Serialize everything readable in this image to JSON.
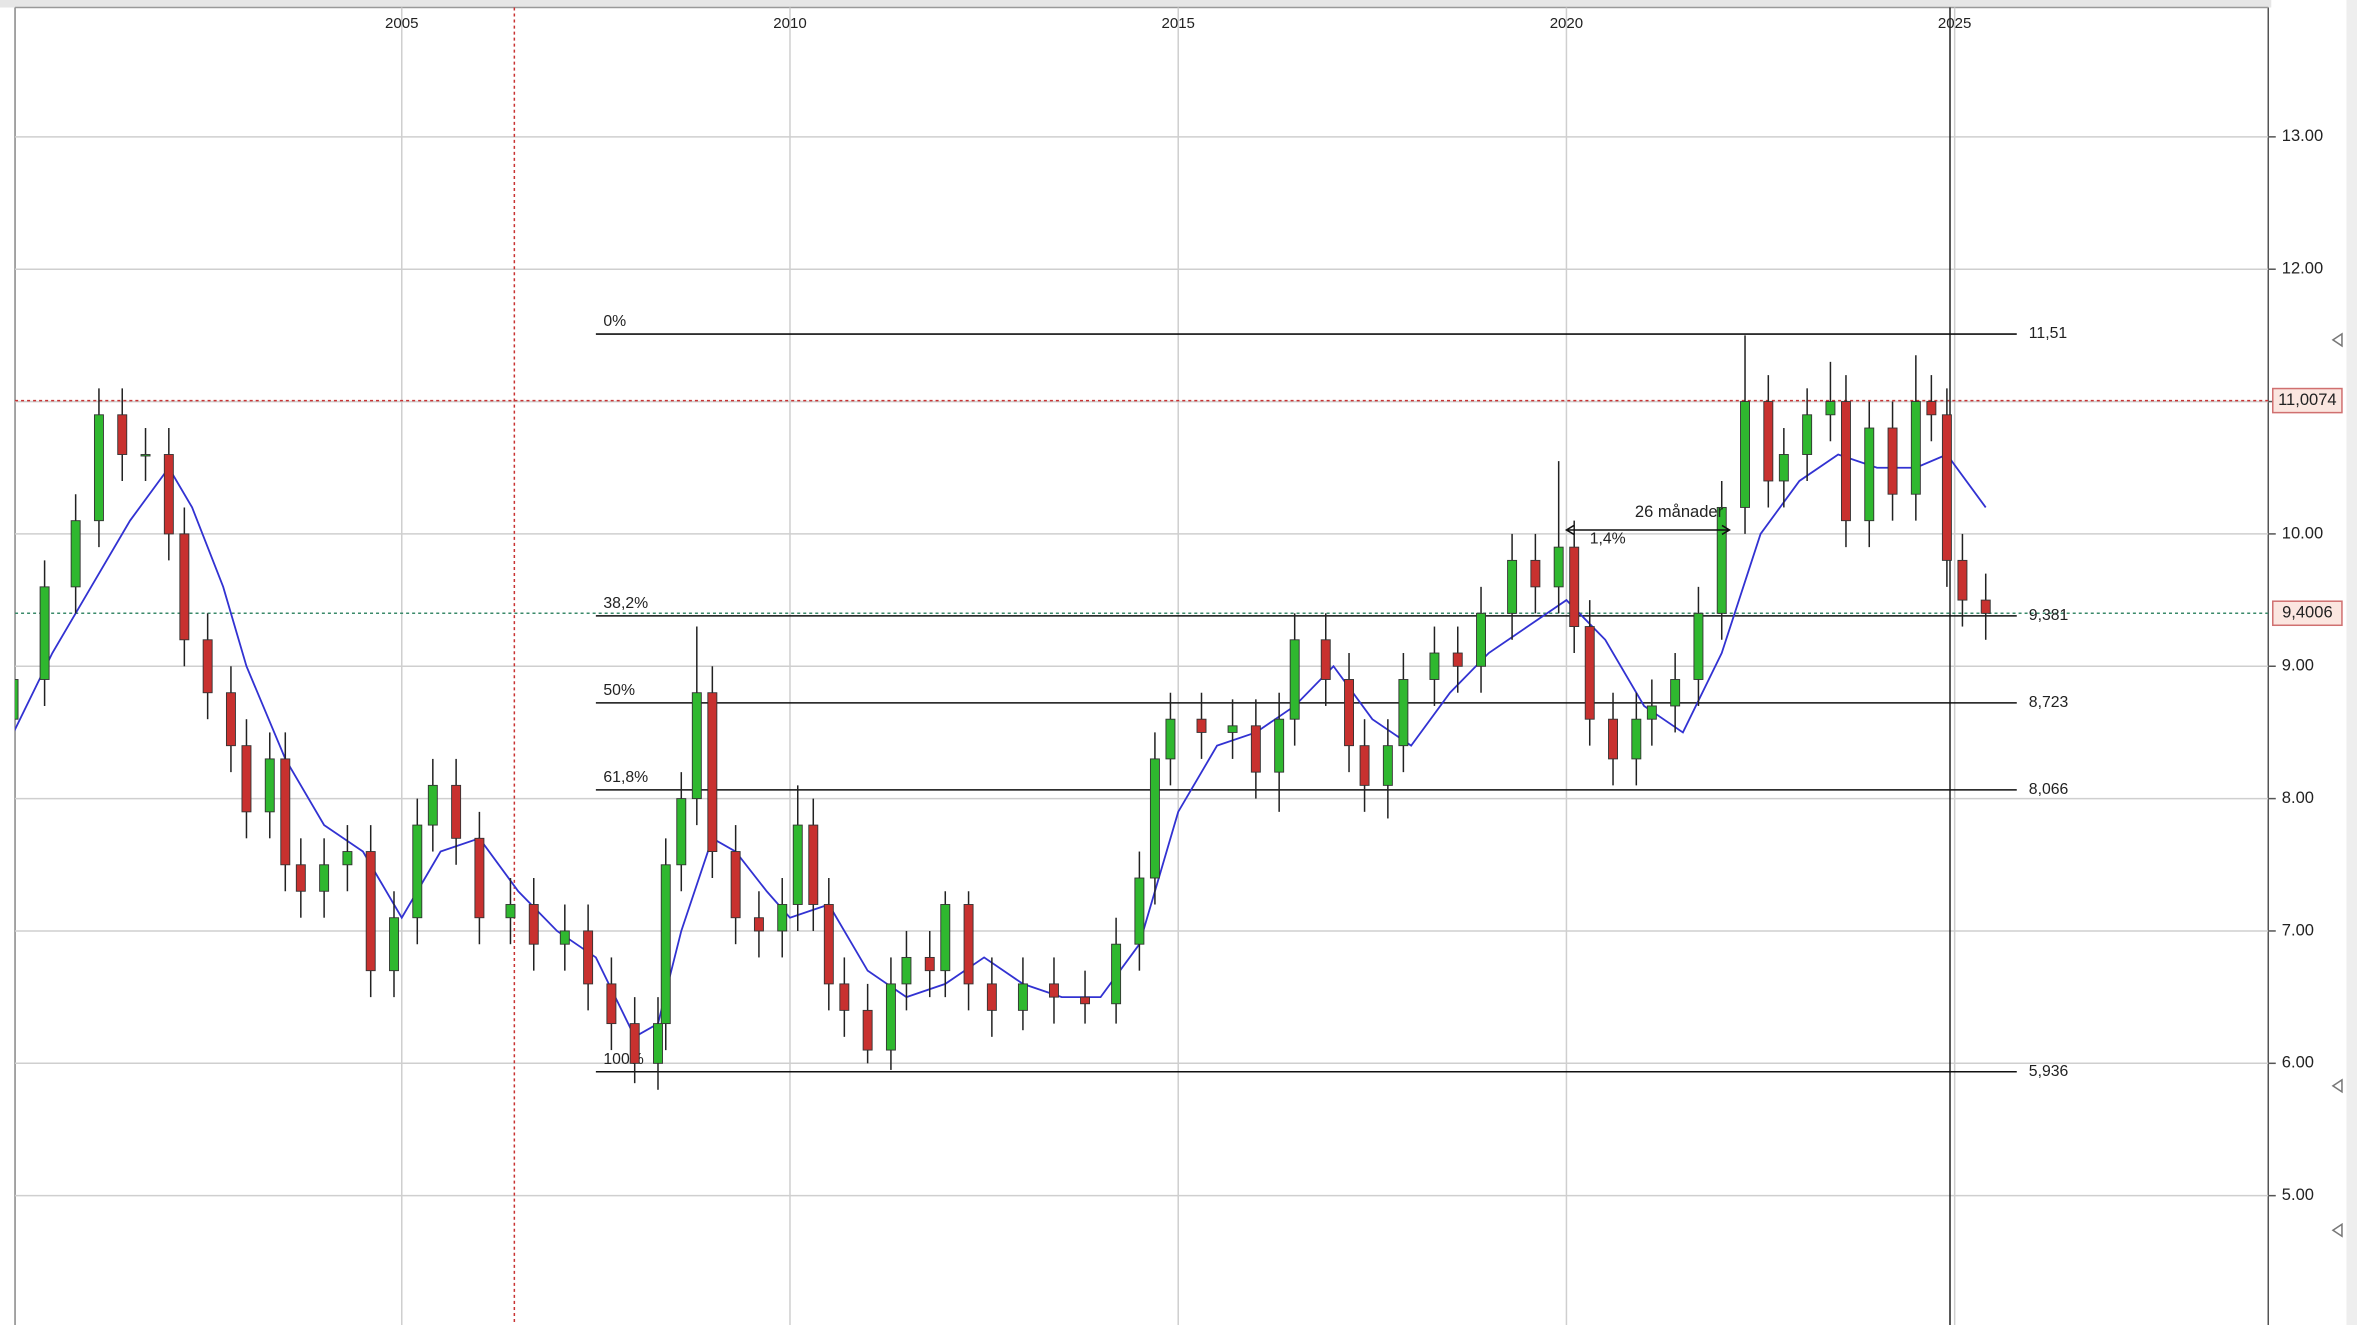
{
  "chart_data": {
    "type": "candlestick",
    "xlim": [
      2000,
      2029
    ],
    "ylim": [
      4,
      14
    ],
    "xticks": [
      2005,
      2010,
      2015,
      2020,
      2025
    ],
    "yticks": [
      {
        "value": 5,
        "label": "5.00"
      },
      {
        "value": 6,
        "label": "6.00"
      },
      {
        "value": 7,
        "label": "7.00"
      },
      {
        "value": 8,
        "label": "8.00"
      },
      {
        "value": 9,
        "label": "9.00"
      },
      {
        "value": 10,
        "label": "10.00"
      },
      {
        "value": 11,
        "label": "11.00"
      },
      {
        "value": 12,
        "label": "12.00"
      },
      {
        "value": 13,
        "label": "13.00"
      }
    ],
    "grid": true,
    "up_color": "#2fb82f",
    "down_color": "#c8312f",
    "x": [
      2000.0,
      2000.4,
      2000.8,
      2001.1,
      2001.4,
      2001.7,
      2002.0,
      2002.2,
      2002.5,
      2002.8,
      2003.0,
      2003.3,
      2003.5,
      2003.7,
      2004.0,
      2004.3,
      2004.6,
      2004.9,
      2005.2,
      2005.4,
      2005.7,
      2006.0,
      2006.4,
      2006.7,
      2007.1,
      2007.4,
      2007.7,
      2008.0,
      2008.3,
      2008.4,
      2008.6,
      2008.8,
      2009.0,
      2009.3,
      2009.6,
      2009.9,
      2010.1,
      2010.3,
      2010.5,
      2010.7,
      2011.0,
      2011.3,
      2011.5,
      2011.8,
      2012.0,
      2012.3,
      2012.6,
      2013.0,
      2013.4,
      2013.8,
      2014.2,
      2014.5,
      2014.7,
      2014.9,
      2015.3,
      2015.7,
      2016.0,
      2016.3,
      2016.5,
      2016.9,
      2017.2,
      2017.4,
      2017.7,
      2017.9,
      2018.3,
      2018.6,
      2018.9,
      2019.3,
      2019.6,
      2019.9,
      2020.1,
      2020.3,
      2020.6,
      2020.9,
      2021.1,
      2021.4,
      2021.7,
      2022.0,
      2022.3,
      2022.6,
      2022.8,
      2023.1,
      2023.4,
      2023.6,
      2023.9,
      2024.2,
      2024.5,
      2024.7,
      2024.9,
      2025.1,
      2025.4
    ],
    "open": [
      8.6,
      8.9,
      9.6,
      10.1,
      10.9,
      10.6,
      10.6,
      10.0,
      9.2,
      8.8,
      8.4,
      7.9,
      8.3,
      7.5,
      7.3,
      7.5,
      7.6,
      6.7,
      7.1,
      7.8,
      8.1,
      7.7,
      7.1,
      7.2,
      6.9,
      7.0,
      6.6,
      6.3,
      6.0,
      6.3,
      7.5,
      8.0,
      8.8,
      7.6,
      7.1,
      7.0,
      7.2,
      7.8,
      7.2,
      6.6,
      6.4,
      6.1,
      6.6,
      6.8,
      6.7,
      7.2,
      6.6,
      6.4,
      6.6,
      6.5,
      6.45,
      6.9,
      7.4,
      8.3,
      8.6,
      8.5,
      8.55,
      8.2,
      8.6,
      9.2,
      8.9,
      8.4,
      8.1,
      8.4,
      8.9,
      9.1,
      9.0,
      9.4,
      9.8,
      9.6,
      9.9,
      9.3,
      8.6,
      8.3,
      8.6,
      8.7,
      8.9,
      9.4,
      10.2,
      11.0,
      10.4,
      10.6,
      10.9,
      11.0,
      10.1,
      10.8,
      10.3,
      11.0,
      10.9,
      9.8,
      9.5
    ],
    "high": [
      9.1,
      9.8,
      10.3,
      11.1,
      11.1,
      10.8,
      10.8,
      10.2,
      9.4,
      9.0,
      8.6,
      8.5,
      8.5,
      7.7,
      7.7,
      7.8,
      7.8,
      7.3,
      8.0,
      8.3,
      8.3,
      7.9,
      7.4,
      7.4,
      7.2,
      7.2,
      6.8,
      6.5,
      6.5,
      7.7,
      8.2,
      9.3,
      9.0,
      7.8,
      7.3,
      7.4,
      8.1,
      8.0,
      7.4,
      6.8,
      6.6,
      6.8,
      7.0,
      7.0,
      7.3,
      7.3,
      6.8,
      6.8,
      6.8,
      6.7,
      7.1,
      7.6,
      8.5,
      8.8,
      8.8,
      8.75,
      8.75,
      8.8,
      9.4,
      9.4,
      9.1,
      8.6,
      8.6,
      9.1,
      9.3,
      9.3,
      9.6,
      10.0,
      10.0,
      10.55,
      10.1,
      9.5,
      8.8,
      8.8,
      8.9,
      9.1,
      9.6,
      10.4,
      11.5,
      11.2,
      10.8,
      11.1,
      11.3,
      11.2,
      11.0,
      11.0,
      11.35,
      11.2,
      11.1,
      10.0,
      9.7
    ],
    "low": [
      8.4,
      8.7,
      9.4,
      9.9,
      10.4,
      10.4,
      9.8,
      9.0,
      8.6,
      8.2,
      7.7,
      7.7,
      7.3,
      7.1,
      7.1,
      7.3,
      6.5,
      6.5,
      6.9,
      7.6,
      7.5,
      6.9,
      6.9,
      6.7,
      6.7,
      6.4,
      6.1,
      5.85,
      5.8,
      6.1,
      7.3,
      7.8,
      7.4,
      6.9,
      6.8,
      6.8,
      7.0,
      7.0,
      6.4,
      6.2,
      6.0,
      5.95,
      6.4,
      6.5,
      6.5,
      6.4,
      6.2,
      6.25,
      6.3,
      6.3,
      6.3,
      6.7,
      7.2,
      8.1,
      8.3,
      8.3,
      8.0,
      7.9,
      8.4,
      8.7,
      8.2,
      7.9,
      7.85,
      8.2,
      8.7,
      8.8,
      8.8,
      9.2,
      9.4,
      9.4,
      9.1,
      8.4,
      8.1,
      8.1,
      8.4,
      8.5,
      8.7,
      9.2,
      10.0,
      10.2,
      10.2,
      10.4,
      10.7,
      9.9,
      9.9,
      10.1,
      10.1,
      10.7,
      9.6,
      9.3,
      9.2
    ],
    "close": [
      8.9,
      9.6,
      10.1,
      10.9,
      10.6,
      10.6,
      10.0,
      9.2,
      8.8,
      8.4,
      7.9,
      8.3,
      7.5,
      7.3,
      7.5,
      7.6,
      6.7,
      7.1,
      7.8,
      8.1,
      7.7,
      7.1,
      7.2,
      6.9,
      7.0,
      6.6,
      6.3,
      6.0,
      6.3,
      7.5,
      8.0,
      8.8,
      7.6,
      7.1,
      7.0,
      7.2,
      7.8,
      7.2,
      6.6,
      6.4,
      6.1,
      6.6,
      6.8,
      6.7,
      7.2,
      6.6,
      6.4,
      6.6,
      6.5,
      6.45,
      6.9,
      7.4,
      8.3,
      8.6,
      8.5,
      8.55,
      8.2,
      8.6,
      9.2,
      8.9,
      8.4,
      8.1,
      8.4,
      8.9,
      9.1,
      9.0,
      9.4,
      9.8,
      9.6,
      9.9,
      9.3,
      8.6,
      8.3,
      8.6,
      8.7,
      8.9,
      9.4,
      10.2,
      11.0,
      10.4,
      10.6,
      10.9,
      11.0,
      10.1,
      10.8,
      10.3,
      11.0,
      10.9,
      9.8,
      9.5,
      9.4
    ],
    "ma": {
      "color": "#3232d2",
      "x": [
        2000.0,
        2000.5,
        2001.0,
        2001.5,
        2002.0,
        2002.3,
        2002.7,
        2003.0,
        2003.5,
        2004.0,
        2004.5,
        2005.0,
        2005.5,
        2006.0,
        2006.5,
        2007.0,
        2007.5,
        2008.0,
        2008.3,
        2008.6,
        2009.0,
        2009.3,
        2009.7,
        2010.0,
        2010.5,
        2011.0,
        2011.5,
        2012.0,
        2012.5,
        2013.0,
        2013.5,
        2014.0,
        2014.5,
        2015.0,
        2015.5,
        2016.0,
        2016.5,
        2017.0,
        2017.5,
        2018.0,
        2018.5,
        2019.0,
        2019.5,
        2020.0,
        2020.5,
        2021.0,
        2021.5,
        2022.0,
        2022.5,
        2023.0,
        2023.5,
        2024.0,
        2024.5,
        2024.9,
        2025.4
      ],
      "values": [
        8.5,
        9.1,
        9.6,
        10.1,
        10.5,
        10.2,
        9.6,
        9.0,
        8.3,
        7.8,
        7.6,
        7.1,
        7.6,
        7.7,
        7.3,
        7.0,
        6.8,
        6.2,
        6.3,
        7.0,
        7.7,
        7.6,
        7.3,
        7.1,
        7.2,
        6.7,
        6.5,
        6.6,
        6.8,
        6.6,
        6.5,
        6.5,
        6.9,
        7.9,
        8.4,
        8.5,
        8.7,
        9.0,
        8.6,
        8.4,
        8.8,
        9.1,
        9.3,
        9.5,
        9.2,
        8.7,
        8.5,
        9.1,
        10.0,
        10.4,
        10.6,
        10.5,
        10.5,
        10.6,
        10.2
      ]
    },
    "fib": {
      "labels": [
        "0%",
        "38,2%",
        "50%",
        "61,8%",
        "100%"
      ],
      "values": [
        11.51,
        9.381,
        8.723,
        8.066,
        5.936
      ],
      "value_labels": [
        "11,51",
        "9,381",
        "8,723",
        "8,066",
        "5,936"
      ]
    },
    "markers": [
      {
        "value": 11.0074,
        "label": "11,0074",
        "color": "#c83232"
      },
      {
        "value": 9.4006,
        "label": "9,4006",
        "color": "#3a8a6a"
      }
    ],
    "vlines": [
      {
        "value": 2006.45,
        "color": "#c83232"
      },
      {
        "value": 2024.94,
        "color": "#222222"
      }
    ],
    "annotations": [
      "26  månader",
      "1,4%"
    ]
  }
}
